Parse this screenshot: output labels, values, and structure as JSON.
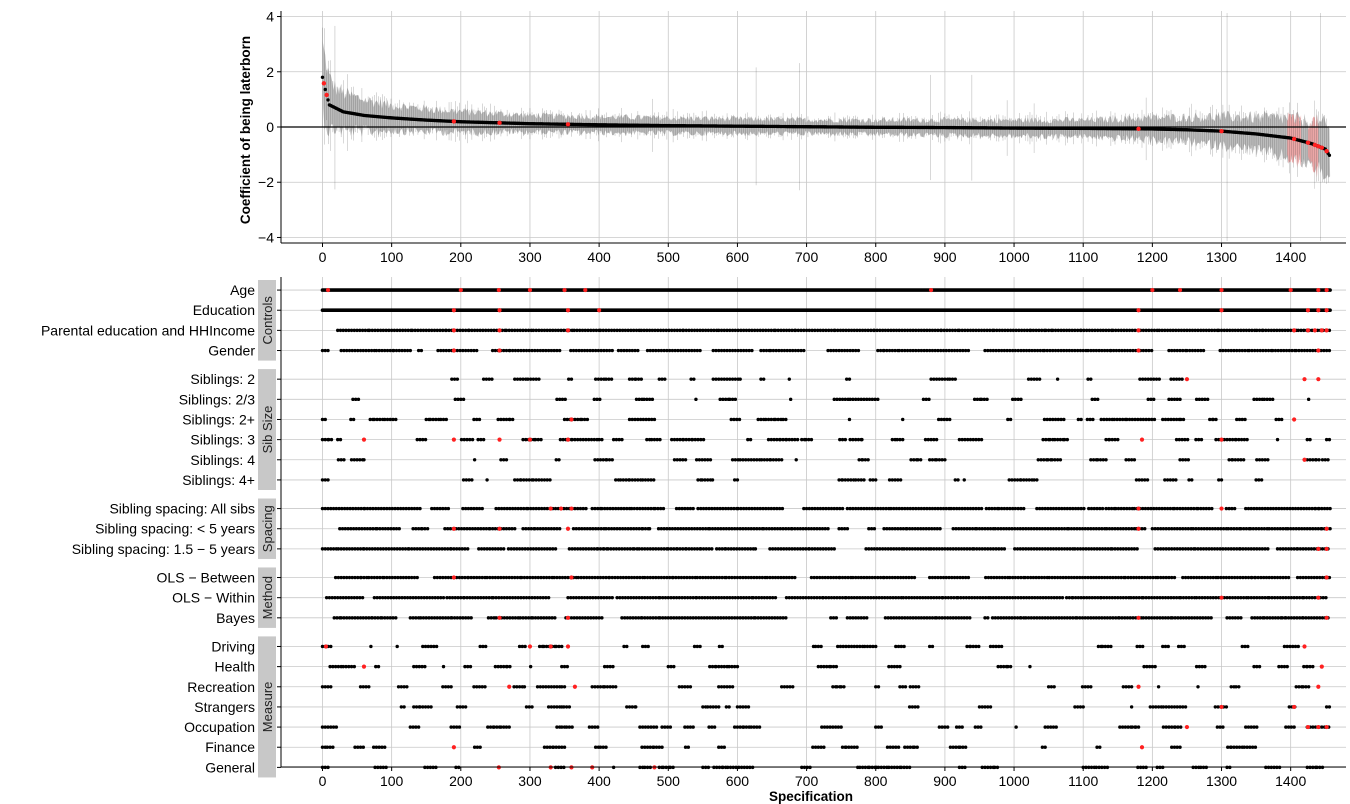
{
  "colors": {
    "point": "#000000",
    "highlight": "#ff2020",
    "ci_band": "#bdbdbd",
    "ci_band_highlight": "#f4a3a3",
    "grid": "#c8c8c8",
    "strip_bg": "#c8c8c8"
  },
  "chart_data": [
    {
      "type": "scatter",
      "panel": "coefficient curve",
      "ylabel": "Coefficient of being laterborn",
      "xlabel": "",
      "xlim": [
        -60,
        1480
      ],
      "ylim": [
        -4.2,
        4.2
      ],
      "yticks": [
        -4,
        -2,
        0,
        2,
        4
      ],
      "ytick_labels": [
        "−4",
        "−2",
        "0",
        "2",
        "4"
      ],
      "xticks": [
        0,
        100,
        200,
        300,
        400,
        500,
        600,
        700,
        800,
        900,
        1000,
        1100,
        1200,
        1300,
        1400
      ],
      "reference_line_y": 0,
      "grid": true,
      "n_specifications": 1458,
      "estimate_curve_knots": {
        "x": [
          0,
          5,
          10,
          30,
          60,
          100,
          150,
          200,
          300,
          400,
          500,
          600,
          700,
          800,
          900,
          1000,
          1100,
          1200,
          1250,
          1300,
          1350,
          1400,
          1430,
          1450,
          1458
        ],
        "y": [
          1.8,
          1.25,
          0.8,
          0.55,
          0.42,
          0.33,
          0.25,
          0.19,
          0.12,
          0.08,
          0.05,
          0.03,
          0.01,
          -0.01,
          -0.02,
          -0.04,
          -0.05,
          -0.07,
          -0.1,
          -0.15,
          -0.25,
          -0.4,
          -0.6,
          -0.8,
          -1.1
        ]
      },
      "ci_halfwidth_knots": {
        "x": [
          0,
          20,
          100,
          300,
          700,
          1100,
          1250,
          1350,
          1420,
          1458
        ],
        "y": [
          1.2,
          0.7,
          0.45,
          0.3,
          0.25,
          0.3,
          0.45,
          0.6,
          0.75,
          0.9
        ]
      },
      "highlighted_specifications": [
        2,
        6,
        190,
        256,
        355,
        1180,
        1300,
        1405,
        1425,
        1435,
        1440,
        1445,
        1452
      ],
      "highlighted_ci_regions": [
        [
          1395,
          1415
        ],
        [
          1425,
          1440
        ]
      ]
    },
    {
      "type": "scatter",
      "panel": "specification indicators",
      "xlabel": "Specification",
      "xlim": [
        -60,
        1480
      ],
      "xticks": [
        0,
        100,
        200,
        300,
        400,
        500,
        600,
        700,
        800,
        900,
        1000,
        1100,
        1200,
        1300,
        1400
      ],
      "grid": true,
      "groups": [
        {
          "name": "Controls",
          "rows": [
            {
              "label": "Age",
              "type": "dense",
              "density": 1.0,
              "red": [
                8,
                200,
                255,
                300,
                350,
                380,
                880,
                1200,
                1240,
                1300,
                1400,
                1440,
                1452
              ]
            },
            {
              "label": "Education",
              "type": "dense",
              "density": 1.0,
              "red": [
                190,
                256,
                355,
                400,
                1180,
                1300,
                1425,
                1440,
                1452
              ]
            },
            {
              "label": "Parental education and HHIncome",
              "type": "mixed",
              "density": 0.75,
              "red": [
                190,
                256,
                355,
                1180,
                1405,
                1425,
                1435,
                1445,
                1452
              ]
            },
            {
              "label": "Gender",
              "type": "mixed",
              "density": 0.6,
              "red": [
                190,
                256,
                1180,
                1440
              ]
            }
          ]
        },
        {
          "name": "Sib Size",
          "rows": [
            {
              "label": "Siblings: 2",
              "type": "sparse",
              "density": 0.3,
              "red": [
                1250,
                1420,
                1440
              ]
            },
            {
              "label": "Siblings: 2/3",
              "type": "sparse",
              "density": 0.28,
              "red": []
            },
            {
              "label": "Siblings: 2+",
              "type": "sparse",
              "density": 0.35,
              "red": [
                360,
                1405
              ]
            },
            {
              "label": "Siblings: 3",
              "type": "sparse",
              "density": 0.35,
              "red": [
                60,
                190,
                256,
                300,
                355,
                1185,
                1300
              ]
            },
            {
              "label": "Siblings: 4",
              "type": "sparse",
              "density": 0.35,
              "red": [
                1420
              ]
            },
            {
              "label": "Siblings: 4+",
              "type": "sparse",
              "density": 0.33,
              "red": []
            }
          ]
        },
        {
          "name": "Spacing",
          "rows": [
            {
              "label": "Sibling spacing: All sibs",
              "type": "mixed",
              "density": 0.55,
              "red": [
                330,
                345,
                360,
                1180,
                1300
              ]
            },
            {
              "label": "Sibling spacing: < 5 years",
              "type": "mixed",
              "density": 0.55,
              "red": [
                190,
                256,
                355,
                1180,
                1452
              ]
            },
            {
              "label": "Sibling spacing: 1.5 − 5 years",
              "type": "mixed",
              "density": 0.55,
              "red": [
                1440,
                1452
              ]
            }
          ]
        },
        {
          "name": "Method",
          "rows": [
            {
              "label": "OLS − Between",
              "type": "mixed",
              "density": 0.6,
              "red": [
                190,
                360,
                1452
              ]
            },
            {
              "label": "OLS − Within",
              "type": "mixed",
              "density": 0.65,
              "red": [
                1300,
                1440
              ]
            },
            {
              "label": "Bayes",
              "type": "mixed",
              "density": 0.6,
              "red": [
                256,
                355,
                1180,
                1452
              ]
            }
          ]
        },
        {
          "name": "Measure",
          "rows": [
            {
              "label": "Driving",
              "type": "sparse",
              "density": 0.3,
              "red": [
                5,
                300,
                330,
                355,
                1420
              ]
            },
            {
              "label": "Health",
              "type": "sparse",
              "density": 0.3,
              "red": [
                60,
                1445
              ]
            },
            {
              "label": "Recreation",
              "type": "sparse",
              "density": 0.3,
              "red": [
                270,
                365,
                1180,
                1440
              ]
            },
            {
              "label": "Strangers",
              "type": "sparse",
              "density": 0.3,
              "red": [
                1300,
                1405
              ]
            },
            {
              "label": "Occupation",
              "type": "sparse",
              "density": 0.3,
              "red": [
                1250,
                1425,
                1440,
                1452
              ]
            },
            {
              "label": "Finance",
              "type": "sparse",
              "density": 0.3,
              "red": [
                190,
                1185
              ]
            },
            {
              "label": "General",
              "type": "sparse",
              "density": 0.3,
              "red": [
                255,
                330,
                360,
                390,
                480
              ]
            }
          ]
        }
      ]
    }
  ]
}
